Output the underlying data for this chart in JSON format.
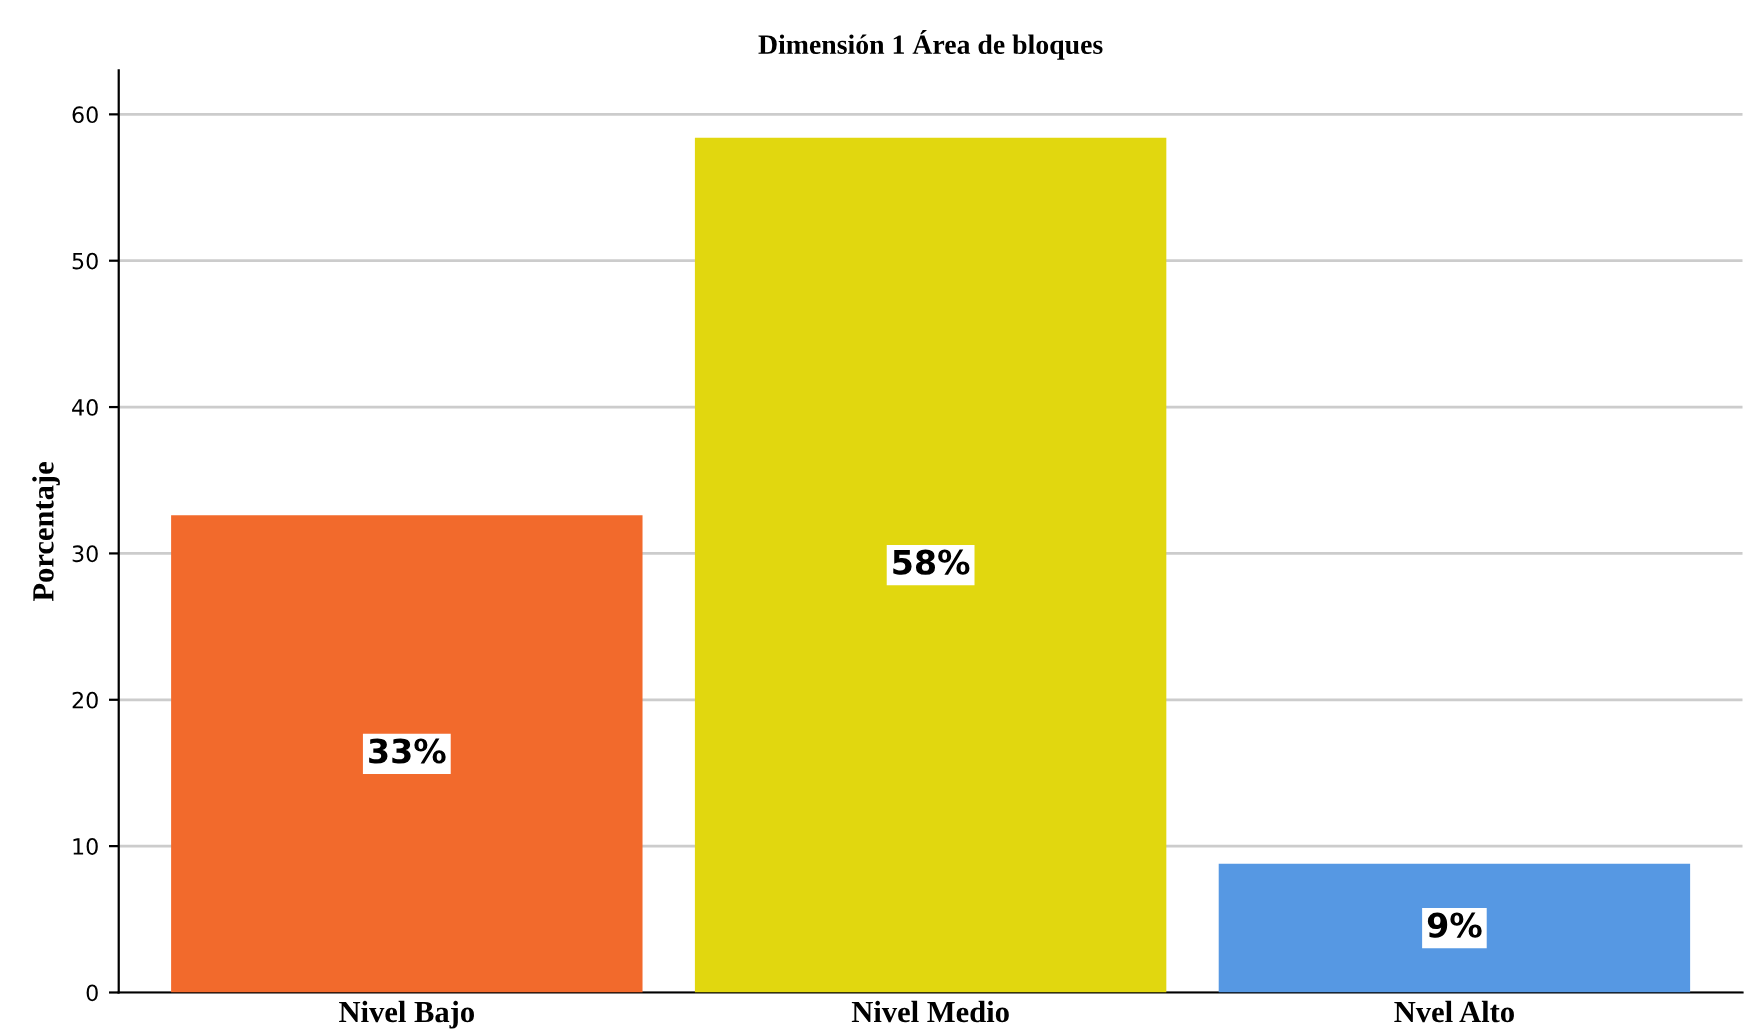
{
  "chart_data": {
    "type": "bar",
    "title": "Dimensión 1 Área de bloques",
    "ylabel": "Porcentaje",
    "categories": [
      "Nivel Bajo",
      "Nivel Medio",
      "Nvel Alto"
    ],
    "values": [
      32.6,
      58.4,
      8.8
    ],
    "colors": [
      "#f26a2c",
      "#e1d70f",
      "#5698e3"
    ],
    "value_labels": [
      "33%",
      "58%",
      "9%"
    ],
    "ylim": [
      0,
      63
    ],
    "yticks": [
      0,
      10,
      20,
      30,
      40,
      50,
      60
    ],
    "grid": "y",
    "legend": false
  }
}
